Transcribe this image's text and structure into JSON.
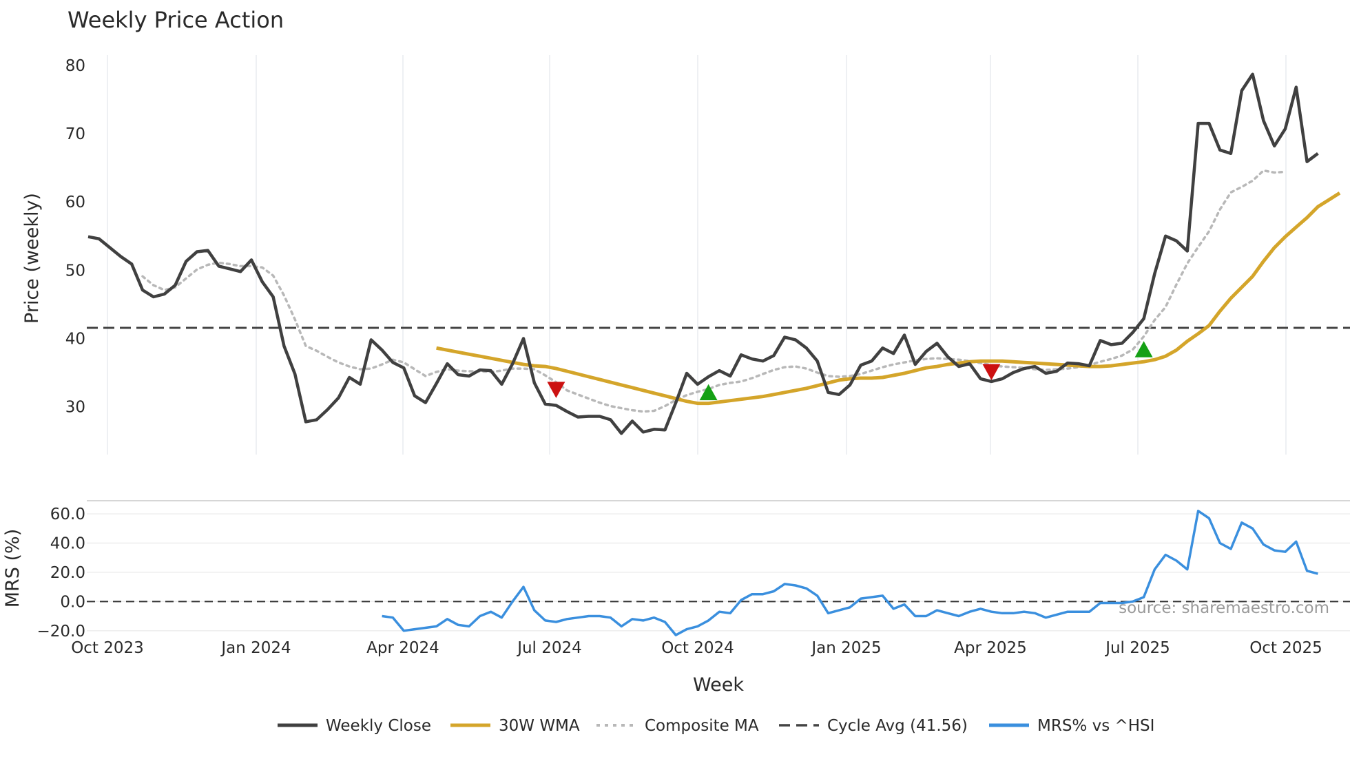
{
  "chart_data": {
    "type": "line",
    "title": "Weekly Price Action",
    "xlabel": "Week",
    "x_ticks": [
      "Oct 2023",
      "Jan 2024",
      "Apr 2024",
      "Jul 2024",
      "Oct 2024",
      "Jan 2025",
      "Apr 2025",
      "Jul 2025",
      "Oct 2025"
    ],
    "price_panel": {
      "ylabel": "Price (weekly)",
      "ylim": [
        23,
        81.5
      ],
      "yticks": [
        30,
        40,
        50,
        60,
        70,
        80
      ],
      "grid": "x",
      "weekly_close": {
        "name": "Weekly Close",
        "color": "#404040",
        "start_week": 0,
        "values": [
          54.9,
          54.6,
          53.3,
          52.0,
          50.9,
          47.1,
          46.1,
          46.5,
          47.8,
          51.3,
          52.7,
          52.9,
          50.6,
          50.2,
          49.8,
          51.5,
          48.3,
          46.1,
          38.9,
          34.8,
          27.8,
          28.1,
          29.6,
          31.3,
          34.3,
          33.3,
          39.8,
          38.3,
          36.5,
          35.7,
          31.6,
          30.6,
          33.4,
          36.3,
          34.7,
          34.5,
          35.4,
          35.3,
          33.3,
          36.3,
          40.0,
          33.5,
          30.4,
          30.2,
          29.3,
          28.5,
          28.6,
          28.6,
          28.1,
          26.1,
          27.9,
          26.3,
          26.7,
          26.6,
          30.6,
          34.9,
          33.3,
          34.4,
          35.3,
          34.5,
          37.6,
          37.0,
          36.7,
          37.5,
          40.2,
          39.8,
          38.6,
          36.7,
          32.1,
          31.8,
          33.2,
          36.1,
          36.7,
          38.6,
          37.8,
          40.5,
          36.2,
          38.1,
          39.3,
          37.3,
          35.9,
          36.3,
          34.1,
          33.7,
          34.1,
          35.0,
          35.6,
          35.9,
          34.9,
          35.2,
          36.4,
          36.3,
          36.0,
          39.7,
          39.1,
          39.3,
          40.9,
          42.9,
          49.5,
          55.0,
          54.3,
          52.8,
          71.5,
          71.5,
          67.6,
          67.1,
          76.3,
          78.7,
          71.9,
          68.2,
          70.7,
          76.8,
          65.9,
          67.1
        ]
      },
      "wma_30w": {
        "name": "30W WMA",
        "color": "#d4a52a",
        "start_week": 32,
        "values": [
          38.6,
          38.3,
          38.0,
          37.7,
          37.4,
          37.1,
          36.8,
          36.5,
          36.2,
          36.0,
          35.9,
          35.6,
          35.2,
          34.8,
          34.4,
          34.0,
          33.6,
          33.2,
          32.8,
          32.4,
          32.0,
          31.6,
          31.2,
          30.8,
          30.5,
          30.5,
          30.7,
          30.9,
          31.1,
          31.3,
          31.5,
          31.8,
          32.1,
          32.4,
          32.7,
          33.1,
          33.5,
          33.9,
          34.1,
          34.2,
          34.2,
          34.3,
          34.6,
          34.9,
          35.3,
          35.7,
          35.9,
          36.2,
          36.4,
          36.6,
          36.7,
          36.7,
          36.7,
          36.6,
          36.5,
          36.4,
          36.3,
          36.2,
          36.1,
          36.0,
          35.9,
          35.9,
          36.0,
          36.2,
          36.4,
          36.6,
          36.9,
          37.4,
          38.3,
          39.6,
          40.7,
          41.9,
          44.0,
          45.9,
          47.5,
          49.1,
          51.3,
          53.3,
          54.9,
          56.3,
          57.7,
          59.3,
          60.3,
          61.3
        ]
      },
      "composite_ma": {
        "name": "Composite MA",
        "color": "#b8b8b8",
        "start_week": 5,
        "values": [
          49.1,
          47.8,
          47.1,
          47.5,
          48.8,
          50.1,
          50.8,
          51.1,
          50.9,
          50.6,
          50.6,
          50.4,
          49.2,
          46.3,
          42.8,
          38.9,
          38.2,
          37.3,
          36.5,
          35.9,
          35.5,
          35.6,
          36.2,
          36.9,
          36.5,
          35.5,
          34.5,
          35.1,
          35.5,
          35.3,
          35.2,
          35.2,
          35.1,
          35.3,
          35.6,
          35.6,
          35.5,
          34.6,
          33.6,
          32.4,
          31.8,
          31.2,
          30.6,
          30.1,
          29.8,
          29.5,
          29.3,
          29.4,
          30.1,
          31.0,
          31.7,
          32.2,
          32.6,
          33.2,
          33.5,
          33.7,
          34.2,
          34.8,
          35.4,
          35.8,
          35.9,
          35.6,
          35.0,
          34.5,
          34.4,
          34.5,
          34.8,
          35.3,
          35.8,
          36.2,
          36.5,
          36.8,
          37.0,
          37.1,
          37.0,
          36.9,
          36.7,
          36.4,
          36.1,
          35.9,
          35.8,
          35.7,
          35.5,
          35.4,
          35.5,
          35.6,
          35.8,
          36.1,
          36.6,
          37.0,
          37.5,
          38.4,
          40.3,
          42.7,
          44.6,
          47.9,
          51.0,
          53.4,
          55.7,
          58.9,
          61.4,
          62.2,
          63.1,
          64.6,
          64.3,
          64.4
        ]
      },
      "cycle_avg": {
        "name": "Cycle Avg (41.56)",
        "value": 41.56,
        "color": "#444444"
      },
      "markers": [
        {
          "type": "sell",
          "week": 43,
          "value": 32.6,
          "color": "#cc1111"
        },
        {
          "type": "buy",
          "week": 57,
          "value": 32.0,
          "color": "#15a015"
        },
        {
          "type": "sell",
          "week": 83,
          "value": 35.2,
          "color": "#cc1111"
        },
        {
          "type": "buy",
          "week": 97,
          "value": 38.3,
          "color": "#15a015"
        }
      ]
    },
    "mrs_panel": {
      "ylabel": "MRS (%)",
      "ylim": [
        -22,
        69
      ],
      "yticks": [
        -20.0,
        0.0,
        20.0,
        40.0,
        60.0
      ],
      "ytick_labels": [
        "−20.0",
        "0.0",
        "20.0",
        "40.0",
        "60.0"
      ],
      "zero_line": 0,
      "series": {
        "name": "MRS% vs ^HSI",
        "color": "#3a8fde",
        "start_week": 27,
        "values": [
          -10,
          -11,
          -20,
          -19,
          -18,
          -17,
          -12,
          -16,
          -17,
          -10,
          -7,
          -11,
          0,
          10,
          -6,
          -13,
          -14,
          -12,
          -11,
          -10,
          -10,
          -11,
          -17,
          -12,
          -13,
          -11,
          -14,
          -23,
          -19,
          -17,
          -13,
          -7,
          -8,
          1,
          5,
          5,
          7,
          12,
          11,
          9,
          4,
          -8,
          -6,
          -4,
          2,
          3,
          4,
          -5,
          -2,
          -10,
          -10,
          -6,
          -8,
          -10,
          -7,
          -5,
          -7,
          -8,
          -8,
          -7,
          -8,
          -11,
          -9,
          -7,
          -7,
          -7,
          -1,
          -1,
          -1,
          0,
          3,
          22,
          32,
          28,
          22,
          62,
          57,
          40,
          36,
          54,
          50,
          39,
          35,
          34,
          41,
          21,
          19
        ]
      }
    },
    "source_note": "source: sharemaestro.com",
    "legend": [
      {
        "label": "Weekly Close",
        "color": "#404040",
        "style": "solid"
      },
      {
        "label": "30W WMA",
        "color": "#d4a52a",
        "style": "solid"
      },
      {
        "label": "Composite MA",
        "color": "#b8b8b8",
        "style": "dotted"
      },
      {
        "label": "Cycle Avg (41.56)",
        "color": "#444444",
        "style": "dashed"
      },
      {
        "label": "MRS% vs ^HSI",
        "color": "#3a8fde",
        "style": "solid"
      }
    ],
    "legend_position": "bottom-center"
  }
}
